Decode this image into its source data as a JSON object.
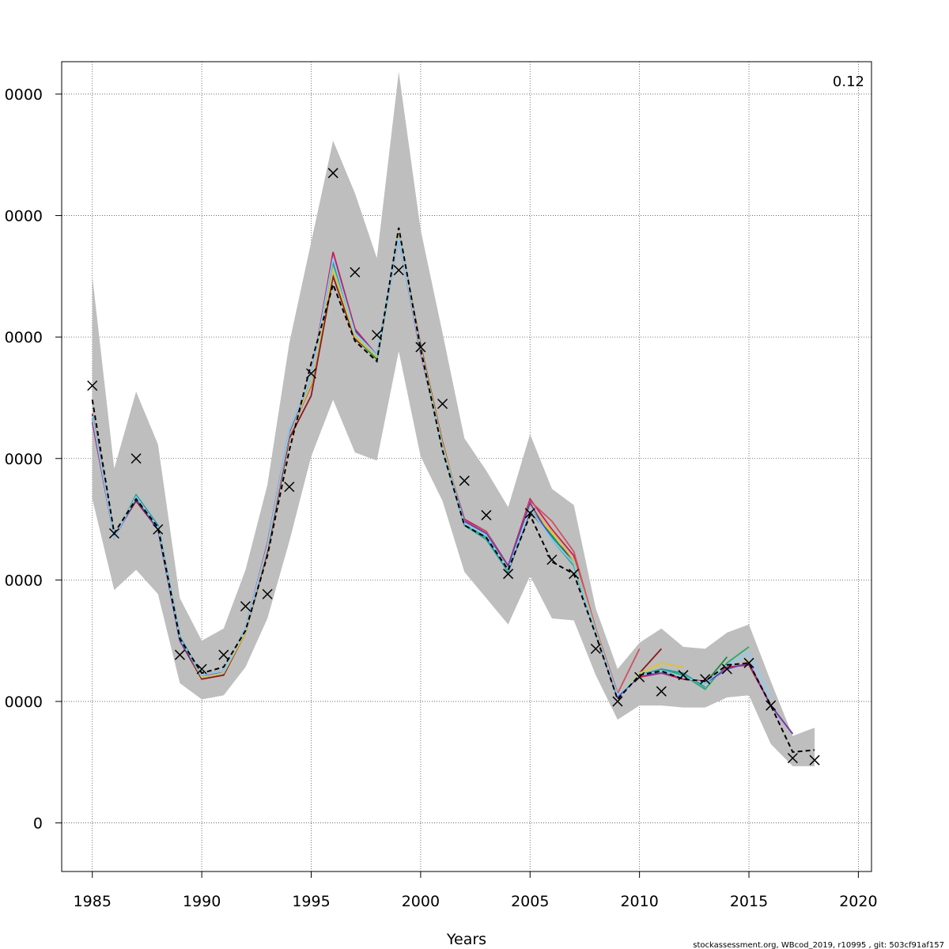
{
  "chart_data": {
    "type": "line",
    "xlabel": "Years",
    "ylabel": "",
    "xlim": [
      1983.6,
      2020.6
    ],
    "ylim": [
      -12000,
      188000
    ],
    "x_ticks": [
      1985,
      1990,
      1995,
      2000,
      2005,
      2010,
      2015,
      2020
    ],
    "x_tick_labels": [
      "1985",
      "1990",
      "1995",
      "2000",
      "2005",
      "2010",
      "2015",
      "2020"
    ],
    "y_ticks": [
      0,
      30000,
      60000,
      90000,
      120000,
      150000,
      180000
    ],
    "y_tick_labels": [
      "0",
      "0000",
      "0000",
      "0000",
      "0000",
      "0000",
      "0000"
    ],
    "grid": true,
    "annotation": "0.12",
    "footer": "stockassessment.org, WBcod_2019, r10995 , git: 503cf91af157",
    "ci_band": {
      "years": [
        1985,
        1986,
        1987,
        1988,
        1989,
        1990,
        1991,
        1992,
        1993,
        1994,
        1995,
        1996,
        1997,
        1998,
        1999,
        2000,
        2001,
        2002,
        2003,
        2004,
        2005,
        2006,
        2007,
        2008,
        2009,
        2010,
        2011,
        2012,
        2013,
        2014,
        2015,
        2016,
        2017,
        2018
      ],
      "lower": [
        80000,
        57500,
        62500,
        56500,
        34500,
        30500,
        31500,
        38500,
        50500,
        69500,
        90500,
        104500,
        91500,
        89500,
        116500,
        90500,
        79500,
        62000,
        55500,
        49000,
        61000,
        50500,
        50000,
        36500,
        25500,
        29000,
        29000,
        28500,
        28500,
        31000,
        31500,
        19500,
        14000,
        14000
      ],
      "upper": [
        135000,
        87500,
        106500,
        93500,
        55500,
        45000,
        48000,
        62500,
        83500,
        118500,
        143500,
        168500,
        155500,
        139500,
        185500,
        146500,
        121000,
        95000,
        87000,
        78000,
        96000,
        82500,
        78500,
        53000,
        38000,
        44500,
        48000,
        43500,
        43000,
        47000,
        49000,
        35000,
        21500,
        23500
      ]
    },
    "observations": {
      "years": [
        1985,
        1986,
        1987,
        1988,
        1989,
        1990,
        1991,
        1992,
        1993,
        1994,
        1995,
        1996,
        1997,
        1998,
        1999,
        2000,
        2001,
        2002,
        2003,
        2004,
        2005,
        2006,
        2007,
        2008,
        2009,
        2010,
        2011,
        2012,
        2013,
        2014,
        2015,
        2016,
        2017,
        2018
      ],
      "values": [
        108000,
        71500,
        90000,
        72500,
        41500,
        38000,
        41500,
        53500,
        56500,
        83000,
        111000,
        160500,
        136000,
        120500,
        136500,
        117500,
        103500,
        84500,
        76000,
        61500,
        76500,
        65000,
        61500,
        43000,
        30000,
        36000,
        32500,
        36500,
        35500,
        38000,
        39500,
        29000,
        16000,
        15500
      ]
    },
    "series": [
      {
        "color": "#000000",
        "dashed": true,
        "startYear": 1985,
        "values": [
          104500,
          71500,
          80000,
          73000,
          45500,
          37000,
          38500,
          47500,
          66000,
          92000,
          113500,
          133000,
          119000,
          114000,
          147000,
          117000,
          92000,
          73500,
          70500,
          62500,
          76000,
          64500,
          61500,
          46500,
          30500,
          36500,
          37500,
          35500,
          35000,
          39000,
          39500,
          29000,
          17500,
          18000
        ]
      },
      {
        "color": "#cc1a5a",
        "startYear": 1985,
        "values": [
          99000,
          70500,
          80000,
          73000,
          46000,
          36000,
          37500,
          48000,
          69000,
          97000,
          110000,
          141000,
          122000,
          115500,
          144500,
          116000,
          93000,
          75000,
          72000,
          63500,
          80000,
          72500,
          66000,
          47500,
          31500,
          36000,
          37000,
          35500,
          35000,
          38500,
          39000,
          29000,
          22000
        ]
      },
      {
        "color": "#8b1a1a",
        "startYear": 1985,
        "values": [
          101000,
          71000,
          79500,
          72500,
          45000,
          35500,
          36500,
          47000,
          67000,
          95000,
          105500,
          135000,
          119500,
          115000,
          145500,
          118000,
          94000,
          74000,
          71000,
          62000,
          77000,
          70500,
          65000,
          47000,
          31000,
          37000,
          43000
        ]
      },
      {
        "color": "#d05060",
        "startYear": 1985,
        "values": [
          100000,
          71000,
          80000,
          73000,
          45500,
          36000,
          37000,
          47500,
          68000,
          96000,
          108000,
          137000,
          121000,
          115000,
          145000,
          117500,
          93500,
          74500,
          72000,
          63000,
          79500,
          74500,
          67000,
          48000,
          32000,
          43000
        ]
      },
      {
        "color": "#2aaa6a",
        "startYear": 1985,
        "values": [
          100500,
          70500,
          81000,
          73500,
          45500,
          36500,
          37500,
          47500,
          68500,
          96500,
          109000,
          138500,
          120500,
          115000,
          145500,
          116500,
          92500,
          74000,
          70500,
          62500,
          77500,
          70000,
          63500,
          47000,
          31500,
          36500,
          38000,
          36500,
          33000,
          39500,
          43500
        ]
      },
      {
        "color": "#1a8a3a",
        "startYear": 1985,
        "values": [
          100500,
          71000,
          80500,
          73000,
          45500,
          36000,
          37000,
          47500,
          68000,
          96000,
          108500,
          137500,
          120000,
          114500,
          145000,
          116500,
          92500,
          74000,
          71000,
          62500,
          78000,
          71000,
          64000,
          47500,
          31500,
          36500,
          37500,
          36000,
          34500,
          41000
        ]
      },
      {
        "color": "#20a0a0",
        "startYear": 1985,
        "values": [
          100500,
          70500,
          81000,
          73500,
          46000,
          36500,
          37500,
          48000,
          68500,
          96500,
          109500,
          138000,
          120500,
          115000,
          145000,
          116500,
          92500,
          73500,
          70000,
          62000,
          77500,
          70500,
          64000,
          47000,
          31500,
          36500,
          38000,
          37000,
          33500
        ]
      },
      {
        "color": "#e0c040",
        "startYear": 1985,
        "values": [
          100500,
          70500,
          80500,
          73000,
          45500,
          36000,
          37000,
          47000,
          68000,
          96000,
          108500,
          136500,
          120000,
          115000,
          145500,
          117500,
          93500,
          74500,
          71500,
          63000,
          78500,
          72000,
          65000,
          47500,
          31500,
          37000,
          39500,
          38500
        ]
      },
      {
        "color": "#c8c870",
        "startYear": 1985,
        "values": [
          100000,
          71000,
          80500,
          73000,
          45500,
          36000,
          37000,
          47500,
          68000,
          96000,
          109000,
          137000,
          120500,
          115500,
          145000,
          117000,
          93000,
          74000,
          71000,
          62500,
          78000,
          71500,
          65000,
          47500,
          31500,
          37000,
          39000
        ]
      },
      {
        "color": "#6a3fb0",
        "startYear": 1985,
        "values": [
          100000,
          70500,
          80000,
          72500,
          45000,
          36500,
          37500,
          48000,
          68500,
          96500,
          110000,
          139500,
          121500,
          115500,
          144500,
          116500,
          92500,
          74500,
          71500,
          63500,
          79000,
          70000,
          64000,
          47000,
          31000,
          36500,
          37000,
          36000,
          34500,
          38000,
          39500,
          29000,
          22000
        ]
      },
      {
        "color": "#87cefa",
        "startYear": 1985,
        "values": [
          100500,
          70500,
          80500,
          73000,
          45500,
          36500,
          37500,
          48000,
          68500,
          97000,
          110000,
          139500,
          121000,
          115500,
          144500,
          116500,
          92500,
          74000,
          71000,
          62500,
          77500,
          70000,
          64000,
          47000,
          31500,
          36500,
          37500,
          36000,
          34500,
          39000,
          42000,
          31000
        ]
      }
    ]
  }
}
